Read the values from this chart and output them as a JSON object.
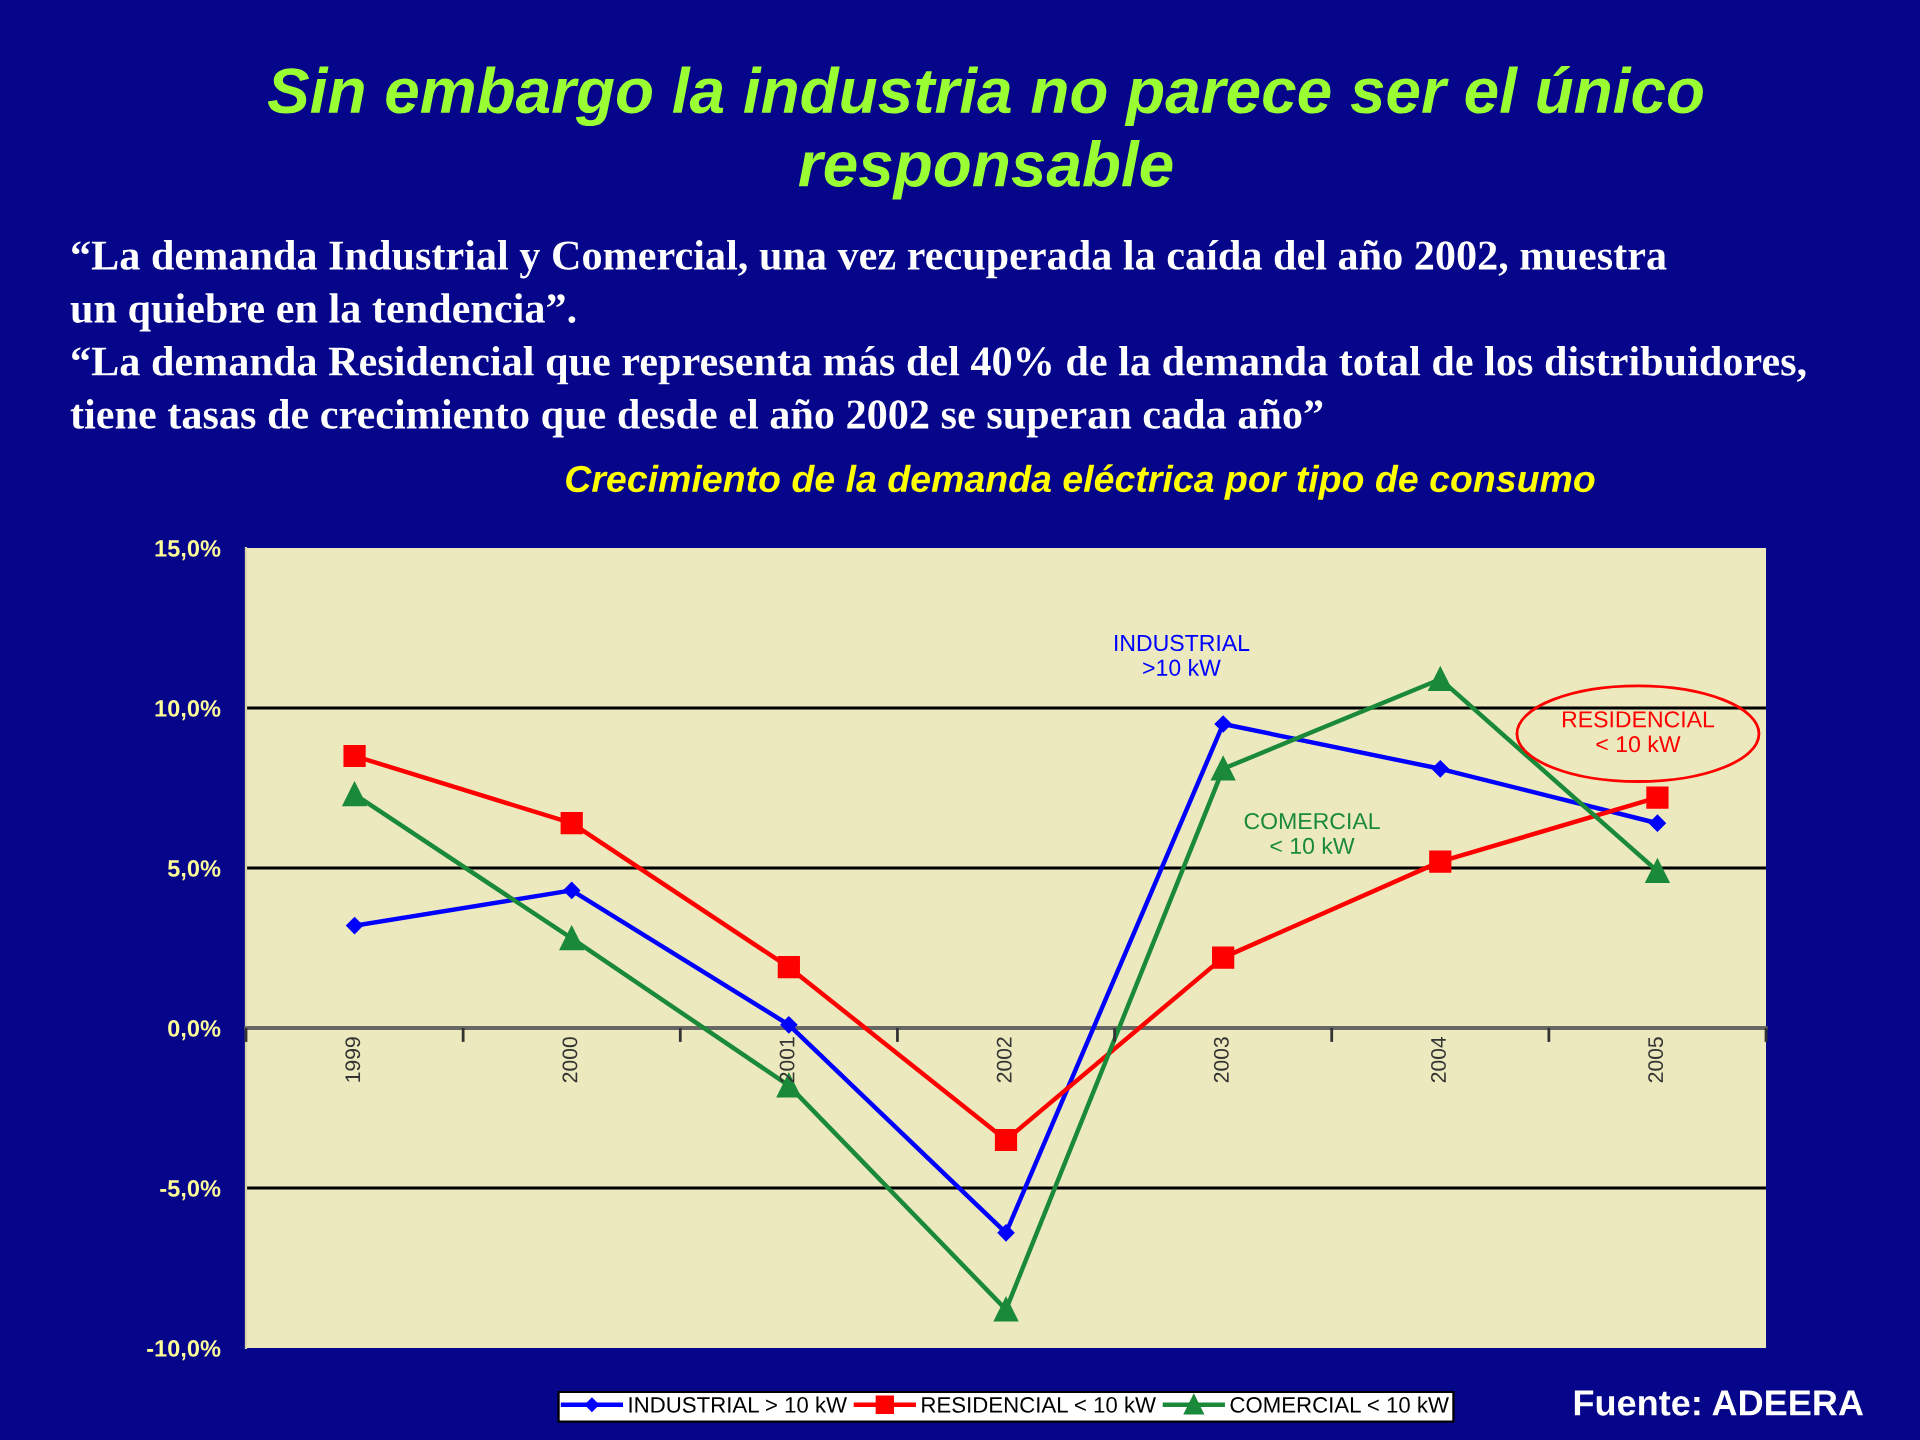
{
  "chart_data": {
    "type": "line",
    "title": "Sin embargo la industria no parece ser el único\nresponsable",
    "subtitle": "Crecimiento de la demanda eléctrica por tipo de consumo",
    "categories": [
      "1999",
      "2000",
      "2001",
      "2002",
      "2003",
      "2004",
      "2005"
    ],
    "series": [
      {
        "name": "INDUSTRIAL > 10 kW",
        "color": "#0000ff",
        "marker": "diamond",
        "values": [
          3.2,
          4.3,
          0.1,
          -6.4,
          9.5,
          8.1,
          6.4
        ]
      },
      {
        "name": "RESIDENCIAL < 10 kW",
        "color": "#ff0000",
        "marker": "square",
        "values": [
          8.5,
          6.4,
          1.9,
          -3.5,
          2.2,
          5.2,
          7.2
        ]
      },
      {
        "name": "COMERCIAL < 10 kW",
        "color": "#1a8a3a",
        "marker": "triangle",
        "values": [
          7.3,
          2.8,
          -1.8,
          -8.8,
          8.1,
          10.9,
          4.9
        ]
      }
    ],
    "ylim": [
      -10,
      15
    ],
    "yticks": [
      {
        "value": -10,
        "label": "-10,0%"
      },
      {
        "value": -5,
        "label": "-5,0%"
      },
      {
        "value": 0,
        "label": "0,0%"
      },
      {
        "value": 5,
        "label": "5,0%"
      },
      {
        "value": 10,
        "label": "10,0%"
      },
      {
        "value": 15,
        "label": "15,0%"
      }
    ],
    "grid": "y",
    "legend": "bottom",
    "annotations": [
      "“La demanda Industrial y Comercial, una vez recuperada la caída del año 2002, muestra\nun quiebre en la tendencia”.",
      "“La demanda Residencial que representa más del 40% de la demanda total de los distribuidores,\ntiene tasas de crecimiento que desde el año 2002 se superan cada año”",
      {
        "text": "INDUSTRIAL\n>10 kW",
        "x": "2003",
        "y": 9.5
      },
      {
        "text": "RESIDENCIAL\n< 10 kW",
        "x": "2005",
        "y": 7.2
      },
      {
        "text": "COMERCIAL\n< 10 kW",
        "x": "2003",
        "y": 8.1
      },
      "Fuente: ADEERA"
    ]
  }
}
